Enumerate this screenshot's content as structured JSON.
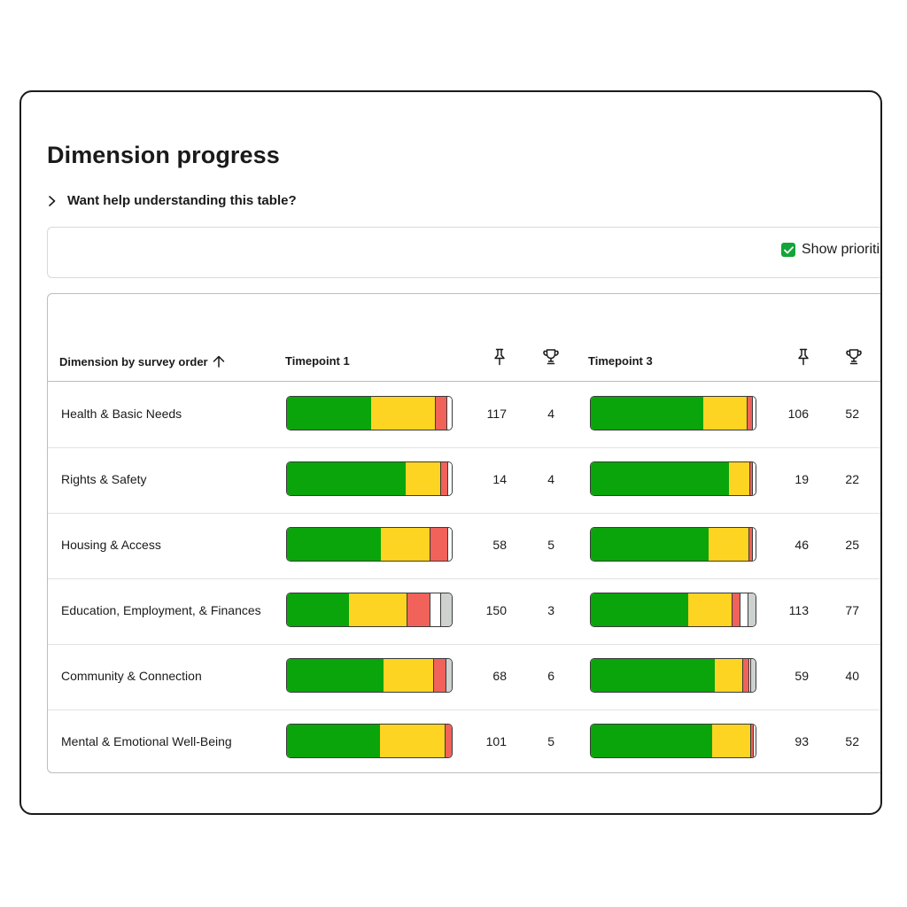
{
  "colors": {
    "green": "#0aa50a",
    "yellow": "#fdd421",
    "red": "#f0625a",
    "white": "#ffffff",
    "grey": "#cdd2cf",
    "checkbox": "#13a538"
  },
  "page": {
    "title": "Dimension progress",
    "help_label": "Want help understanding this table?",
    "help_icon": "chevron-right-icon"
  },
  "filters": {
    "show_priorities_label": "Show prioriti",
    "show_priorities_checked": true
  },
  "table": {
    "headers": {
      "dimension": "Dimension by survey order",
      "timepoint_a": "Timepoint 1",
      "timepoint_b": "Timepoint 3",
      "sort_icon": "arrow-up-icon",
      "pin_icon": "pin-icon",
      "trophy_icon": "trophy-icon"
    },
    "rows": [
      {
        "name": "Health & Basic Needs",
        "t1": {
          "green": 0.515,
          "yellow": 0.39,
          "red": 0.07,
          "white": 0.025,
          "grey": 0.0,
          "pin": "117",
          "trophy": "4"
        },
        "t3": {
          "green": 0.69,
          "yellow": 0.265,
          "red": 0.03,
          "white": 0.015,
          "grey": 0.0,
          "pin": "106",
          "trophy": "52"
        }
      },
      {
        "name": "Rights & Safety",
        "t1": {
          "green": 0.73,
          "yellow": 0.21,
          "red": 0.04,
          "white": 0.02,
          "grey": 0.0,
          "pin": "14",
          "trophy": "4"
        },
        "t3": {
          "green": 0.845,
          "yellow": 0.125,
          "red": 0.015,
          "white": 0.015,
          "grey": 0.0,
          "pin": "19",
          "trophy": "22"
        }
      },
      {
        "name": "Housing & Access",
        "t1": {
          "green": 0.575,
          "yellow": 0.3,
          "red": 0.105,
          "white": 0.02,
          "grey": 0.0,
          "pin": "58",
          "trophy": "5"
        },
        "t3": {
          "green": 0.725,
          "yellow": 0.24,
          "red": 0.02,
          "white": 0.015,
          "grey": 0.0,
          "pin": "46",
          "trophy": "25"
        }
      },
      {
        "name": "Education, Employment, & Finances",
        "t1": {
          "green": 0.385,
          "yellow": 0.355,
          "red": 0.135,
          "white": 0.06,
          "grey": 0.065,
          "pin": "150",
          "trophy": "3"
        },
        "t3": {
          "green": 0.6,
          "yellow": 0.27,
          "red": 0.045,
          "white": 0.04,
          "grey": 0.045,
          "pin": "113",
          "trophy": "77"
        }
      },
      {
        "name": "Community & Connection",
        "t1": {
          "green": 0.59,
          "yellow": 0.305,
          "red": 0.07,
          "white": 0.0,
          "grey": 0.035,
          "pin": "68",
          "trophy": "6"
        },
        "t3": {
          "green": 0.765,
          "yellow": 0.17,
          "red": 0.03,
          "white": 0.01,
          "grey": 0.025,
          "pin": "59",
          "trophy": "40"
        }
      },
      {
        "name": "Mental & Emotional Well-Being",
        "t1": {
          "green": 0.57,
          "yellow": 0.39,
          "red": 0.04,
          "white": 0.0,
          "grey": 0.0,
          "pin": "101",
          "trophy": "5"
        },
        "t3": {
          "green": 0.745,
          "yellow": 0.235,
          "red": 0.01,
          "white": 0.01,
          "grey": 0.0,
          "pin": "93",
          "trophy": "52"
        }
      }
    ]
  }
}
